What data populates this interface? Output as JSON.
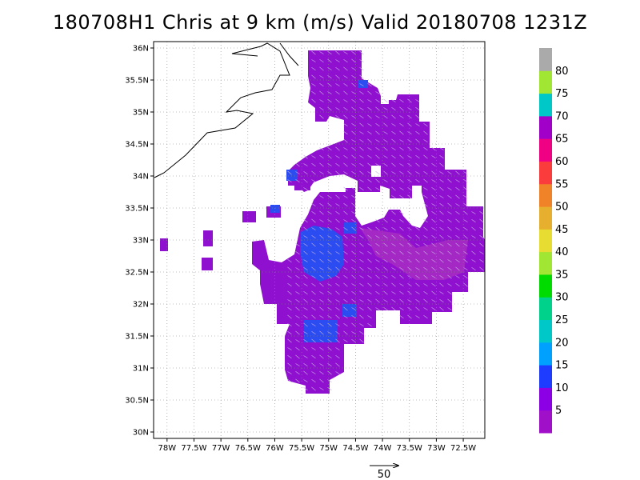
{
  "title": "180708H1 Chris at 9 km (m/s) Valid 20180708 1231Z",
  "lat_labels": [
    "36N",
    "35.5N",
    "35N",
    "34.5N",
    "34N",
    "33.5N",
    "33N",
    "32.5N",
    "32N",
    "31.5N",
    "31N",
    "30.5N",
    "30N"
  ],
  "lon_labels": [
    "78W",
    "77.5W",
    "77W",
    "76.5W",
    "76W",
    "75.5W",
    "75W",
    "74.5W",
    "74W",
    "73.5W",
    "73W",
    "72.5W"
  ],
  "colorbar": {
    "labels": [
      "5",
      "10",
      "15",
      "20",
      "25",
      "30",
      "35",
      "40",
      "45",
      "50",
      "55",
      "60",
      "65",
      "70",
      "75",
      "80"
    ],
    "colors": [
      "#a010c8",
      "#8c00e6",
      "#1e3cff",
      "#00a0ff",
      "#00c8c8",
      "#00d28c",
      "#00dc00",
      "#a0e632",
      "#e6dc32",
      "#e6af2d",
      "#f08228",
      "#fa3c3c",
      "#f00082",
      "#a000c8",
      "#00c8c8",
      "#a0e632",
      "#aaaaaa"
    ]
  },
  "reference_vector": {
    "label": "50"
  },
  "map_data": {
    "lon_range": [
      -78.25,
      -72.1
    ],
    "lat_range": [
      29.9,
      36.1
    ],
    "background_color": "#9010d0",
    "secondary_color": "#a030c0",
    "highlight_color": "#2050f0"
  }
}
